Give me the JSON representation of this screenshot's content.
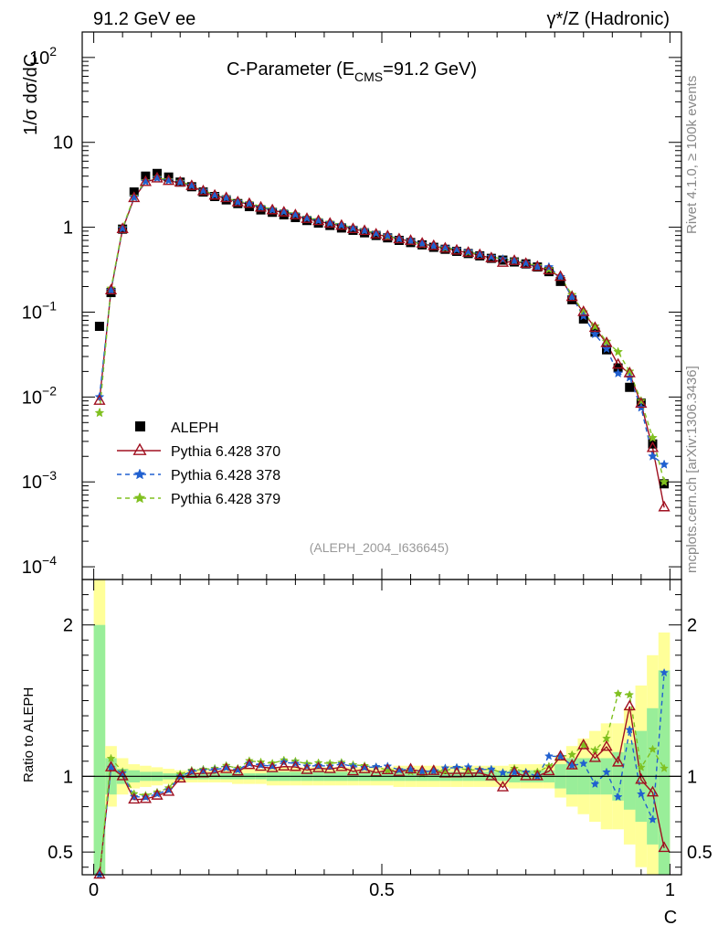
{
  "header": {
    "left": "91.2 GeV ee",
    "right": "γ*/Z (Hadronic)"
  },
  "side_labels": {
    "rivet": "Rivet 4.1.0, ≥ 100k events",
    "mcplots": "mcplots.cern.ch [arXiv:1306.3436]"
  },
  "chart_data": {
    "type": "line",
    "title_main": "C-Parameter (E",
    "title_sub": "CMS",
    "title_tail": "=91.2 GeV)",
    "analysis_id": "(ALEPH_2004_I636645)",
    "xlabel": "C",
    "ylabel_main": "1/σ  dσ/dC",
    "ylabel_ratio": "Ratio to ALEPH",
    "xlim": [
      -0.02,
      1.02
    ],
    "ylim_main_log10": [
      -4.15,
      2.3
    ],
    "ylim_ratio": [
      0.35,
      2.3
    ],
    "x_ticks": [
      {
        "value": 0,
        "label": "0"
      },
      {
        "value": 0.5,
        "label": "0.5"
      },
      {
        "value": 1,
        "label": "1"
      }
    ],
    "y_ticks_main": [
      {
        "value": 2,
        "base": "10",
        "exp": "2"
      },
      {
        "value": 1,
        "base": "10",
        "exp": ""
      },
      {
        "value": 0,
        "base": "1",
        "exp": ""
      },
      {
        "value": -1,
        "base": "10",
        "exp": "−1"
      },
      {
        "value": -2,
        "base": "10",
        "exp": "−2"
      },
      {
        "value": -3,
        "base": "10",
        "exp": "−3"
      },
      {
        "value": -4,
        "base": "10",
        "exp": "−4"
      }
    ],
    "y_ticks_ratio": [
      {
        "value": 0.5,
        "label": "0.5"
      },
      {
        "value": 1,
        "label": "1"
      },
      {
        "value": 2,
        "label": "2"
      }
    ],
    "x": [
      0.01,
      0.03,
      0.05,
      0.07,
      0.09,
      0.11,
      0.13,
      0.15,
      0.17,
      0.19,
      0.21,
      0.23,
      0.25,
      0.27,
      0.29,
      0.31,
      0.33,
      0.35,
      0.37,
      0.39,
      0.41,
      0.43,
      0.45,
      0.47,
      0.49,
      0.51,
      0.53,
      0.55,
      0.57,
      0.59,
      0.61,
      0.63,
      0.65,
      0.67,
      0.69,
      0.71,
      0.73,
      0.75,
      0.77,
      0.79,
      0.81,
      0.83,
      0.85,
      0.87,
      0.89,
      0.91,
      0.93,
      0.95,
      0.97,
      0.99
    ],
    "series": [
      {
        "name": "ALEPH",
        "color": "#000000",
        "style": "data",
        "values": [
          0.068,
          0.17,
          0.95,
          2.6,
          4.0,
          4.3,
          3.9,
          3.4,
          3.0,
          2.6,
          2.3,
          2.1,
          1.9,
          1.75,
          1.6,
          1.5,
          1.4,
          1.3,
          1.2,
          1.12,
          1.05,
          0.98,
          0.92,
          0.86,
          0.8,
          0.75,
          0.7,
          0.66,
          0.62,
          0.58,
          0.55,
          0.52,
          0.49,
          0.46,
          0.43,
          0.41,
          0.39,
          0.37,
          0.34,
          0.3,
          0.23,
          0.14,
          0.083,
          0.058,
          0.036,
          0.022,
          0.013,
          0.0085,
          0.0028,
          0.00095
        ]
      },
      {
        "name": "Pythia 6.428 370",
        "color": "#a01020",
        "style": "solid",
        "values": [
          0.009,
          0.18,
          0.95,
          2.2,
          3.4,
          3.75,
          3.5,
          3.35,
          3.05,
          2.65,
          2.35,
          2.2,
          1.96,
          1.88,
          1.7,
          1.58,
          1.49,
          1.38,
          1.25,
          1.18,
          1.1,
          1.04,
          0.95,
          0.9,
          0.82,
          0.78,
          0.72,
          0.69,
          0.64,
          0.6,
          0.56,
          0.53,
          0.5,
          0.47,
          0.43,
          0.38,
          0.4,
          0.37,
          0.34,
          0.31,
          0.26,
          0.15,
          0.1,
          0.065,
          0.043,
          0.024,
          0.019,
          0.0083,
          0.0025,
          0.0005
        ]
      },
      {
        "name": "Pythia 6.428 378",
        "color": "#2060d0",
        "style": "dashed",
        "values": [
          0.01,
          0.18,
          0.97,
          2.25,
          3.45,
          3.8,
          3.55,
          3.4,
          3.1,
          2.7,
          2.4,
          2.22,
          1.98,
          1.9,
          1.72,
          1.6,
          1.53,
          1.41,
          1.28,
          1.2,
          1.12,
          1.06,
          0.98,
          0.91,
          0.85,
          0.8,
          0.73,
          0.69,
          0.64,
          0.6,
          0.58,
          0.55,
          0.52,
          0.48,
          0.45,
          0.42,
          0.4,
          0.38,
          0.34,
          0.34,
          0.26,
          0.15,
          0.09,
          0.055,
          0.037,
          0.019,
          0.017,
          0.0075,
          0.002,
          0.0016
        ]
      },
      {
        "name": "Pythia 6.428 379",
        "color": "#80c020",
        "style": "dashed",
        "values": [
          0.0065,
          0.19,
          0.98,
          2.3,
          3.5,
          3.85,
          3.6,
          3.45,
          3.12,
          2.72,
          2.42,
          2.25,
          2.0,
          1.93,
          1.75,
          1.63,
          1.55,
          1.43,
          1.3,
          1.22,
          1.14,
          1.07,
          0.99,
          0.92,
          0.85,
          0.78,
          0.73,
          0.68,
          0.63,
          0.6,
          0.57,
          0.55,
          0.51,
          0.48,
          0.45,
          0.42,
          0.41,
          0.38,
          0.35,
          0.32,
          0.26,
          0.16,
          0.1,
          0.068,
          0.045,
          0.034,
          0.02,
          0.009,
          0.0033,
          0.001
        ]
      }
    ],
    "band_green_halfwidth": [
      1.0,
      0.12,
      0.05,
      0.04,
      0.03,
      0.03,
      0.02,
      0.02,
      0.02,
      0.02,
      0.02,
      0.02,
      0.02,
      0.02,
      0.02,
      0.03,
      0.03,
      0.03,
      0.03,
      0.03,
      0.03,
      0.03,
      0.03,
      0.03,
      0.03,
      0.03,
      0.03,
      0.03,
      0.03,
      0.03,
      0.03,
      0.03,
      0.03,
      0.03,
      0.03,
      0.03,
      0.04,
      0.04,
      0.04,
      0.04,
      0.08,
      0.12,
      0.12,
      0.12,
      0.12,
      0.16,
      0.22,
      0.3,
      0.45,
      0.7
    ],
    "band_yellow_halfwidth": [
      1.3,
      0.2,
      0.12,
      0.08,
      0.07,
      0.06,
      0.05,
      0.04,
      0.04,
      0.04,
      0.04,
      0.04,
      0.05,
      0.05,
      0.05,
      0.06,
      0.06,
      0.06,
      0.06,
      0.06,
      0.06,
      0.06,
      0.06,
      0.06,
      0.06,
      0.06,
      0.07,
      0.07,
      0.07,
      0.07,
      0.07,
      0.07,
      0.07,
      0.07,
      0.07,
      0.07,
      0.08,
      0.08,
      0.08,
      0.08,
      0.14,
      0.2,
      0.25,
      0.3,
      0.35,
      0.35,
      0.45,
      0.6,
      0.8,
      0.95
    ]
  }
}
